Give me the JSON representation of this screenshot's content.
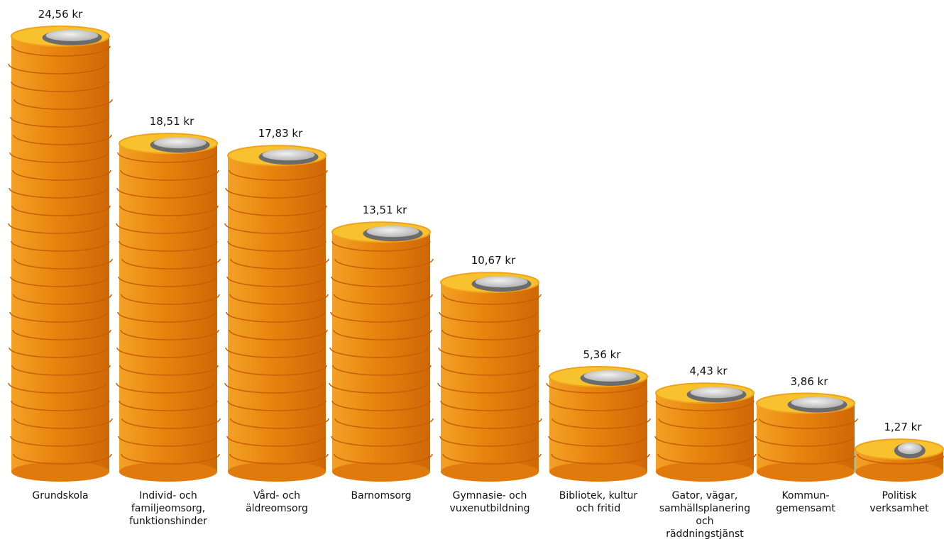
{
  "chart_data": {
    "type": "coinstack",
    "categories": [
      "Grundskola",
      "Individ- och familjeomsorg, funktionshinder",
      "Vård- och äldreomsorg",
      "Barnomsorg",
      "Gymnasie- och vuxenutbildning",
      "Bibliotek, kultur och fritid",
      "Gator, vägar, samhällsplanering och räddningstjänst",
      "Kommun- gemensamt",
      "Politisk verksamhet"
    ],
    "values": [
      24.56,
      18.51,
      17.83,
      13.51,
      10.67,
      5.36,
      4.43,
      3.86,
      1.27
    ],
    "value_labels": [
      "24,56 kr",
      "18,51 kr",
      "17,83 kr",
      "13,51 kr",
      "10,67 kr",
      "5,36 kr",
      "4,43 kr",
      "3,86 kr",
      "1,27 kr"
    ],
    "color": "#e8830e"
  }
}
